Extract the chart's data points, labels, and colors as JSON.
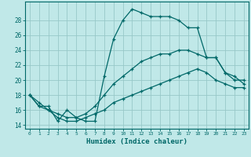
{
  "xlabel": "Humidex (Indice chaleur)",
  "bg_color": "#c0e8e8",
  "grid_color": "#98c8c8",
  "line_color": "#006868",
  "spine_color": "#006868",
  "xlim": [
    -0.5,
    23.5
  ],
  "ylim": [
    13.5,
    30.5
  ],
  "yticks": [
    14,
    16,
    18,
    20,
    22,
    24,
    26,
    28
  ],
  "xticks": [
    0,
    1,
    2,
    3,
    4,
    5,
    6,
    7,
    8,
    9,
    10,
    11,
    12,
    13,
    14,
    15,
    16,
    17,
    18,
    19,
    20,
    21,
    22,
    23
  ],
  "line1_x": [
    0,
    1,
    2,
    3,
    4,
    5,
    6,
    7,
    8,
    9,
    10,
    11,
    12,
    13,
    14,
    15,
    16,
    17,
    18,
    19,
    20,
    21,
    22,
    23
  ],
  "line1_y": [
    18,
    16.5,
    16.5,
    14.5,
    16,
    15,
    14.5,
    14.5,
    20.5,
    25.5,
    28,
    29.5,
    29,
    28.5,
    28.5,
    28.5,
    28,
    27,
    27,
    23,
    23,
    21,
    20,
    20
  ],
  "line2_x": [
    0,
    1,
    2,
    3,
    4,
    5,
    6,
    7,
    8,
    9,
    10,
    11,
    12,
    13,
    14,
    15,
    16,
    17,
    18,
    19,
    20,
    21,
    22,
    23
  ],
  "line2_y": [
    18,
    17,
    16,
    15.5,
    15,
    15,
    15.5,
    16.5,
    18,
    19.5,
    20.5,
    21.5,
    22.5,
    23,
    23.5,
    23.5,
    24,
    24,
    23.5,
    23,
    23,
    21,
    20.5,
    19.5
  ],
  "line3_x": [
    0,
    1,
    2,
    3,
    4,
    5,
    6,
    7,
    8,
    9,
    10,
    11,
    12,
    13,
    14,
    15,
    16,
    17,
    18,
    19,
    20,
    21,
    22,
    23
  ],
  "line3_y": [
    18,
    16.5,
    16,
    15,
    14.5,
    14.5,
    15,
    15.5,
    16,
    17,
    17.5,
    18,
    18.5,
    19,
    19.5,
    20,
    20.5,
    21,
    21.5,
    21,
    20,
    19.5,
    19,
    19
  ]
}
